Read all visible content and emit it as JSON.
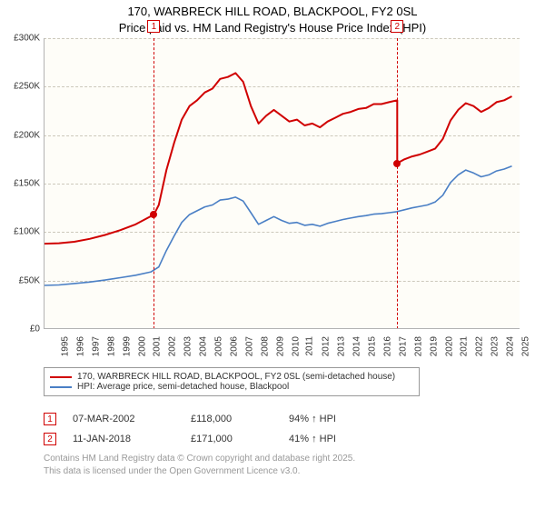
{
  "title_line1": "170, WARBRECK HILL ROAD, BLACKPOOL, FY2 0SL",
  "title_line2": "Price paid vs. HM Land Registry's House Price Index (HPI)",
  "chart": {
    "type": "line",
    "background_color": "#fefdf8",
    "grid_color": "#ccc8bb",
    "axis_color": "#b3b3b3",
    "x_start_year": 1995,
    "x_end_year": 2026,
    "xticks": [
      1995,
      1996,
      1997,
      1998,
      1999,
      2000,
      2001,
      2002,
      2003,
      2004,
      2005,
      2006,
      2007,
      2008,
      2009,
      2010,
      2011,
      2012,
      2013,
      2014,
      2015,
      2016,
      2017,
      2018,
      2019,
      2020,
      2021,
      2022,
      2023,
      2024,
      2025
    ],
    "ylim": [
      0,
      300000
    ],
    "yticks": [
      {
        "v": 0,
        "label": "£0"
      },
      {
        "v": 50000,
        "label": "£50K"
      },
      {
        "v": 100000,
        "label": "£100K"
      },
      {
        "v": 150000,
        "label": "£150K"
      },
      {
        "v": 200000,
        "label": "£200K"
      },
      {
        "v": 250000,
        "label": "£250K"
      },
      {
        "v": 300000,
        "label": "£300K"
      }
    ],
    "series": [
      {
        "id": "price_paid",
        "label": "170, WARBRECK HILL ROAD, BLACKPOOL, FY2 0SL (semi-detached house)",
        "color": "#d00000",
        "width": 2,
        "data": [
          [
            1995,
            88000
          ],
          [
            1996,
            88500
          ],
          [
            1997,
            90000
          ],
          [
            1998,
            93000
          ],
          [
            1999,
            97000
          ],
          [
            2000,
            102000
          ],
          [
            2001,
            108000
          ],
          [
            2002.18,
            118000
          ],
          [
            2002.5,
            128000
          ],
          [
            2003,
            164000
          ],
          [
            2003.5,
            192000
          ],
          [
            2004,
            216000
          ],
          [
            2004.5,
            230000
          ],
          [
            2005,
            236000
          ],
          [
            2005.5,
            244000
          ],
          [
            2006,
            248000
          ],
          [
            2006.5,
            258000
          ],
          [
            2007,
            260000
          ],
          [
            2007.5,
            264000
          ],
          [
            2008,
            255000
          ],
          [
            2008.5,
            230000
          ],
          [
            2009,
            212000
          ],
          [
            2009.5,
            220000
          ],
          [
            2010,
            226000
          ],
          [
            2010.5,
            220000
          ],
          [
            2011,
            214000
          ],
          [
            2011.5,
            216000
          ],
          [
            2012,
            210000
          ],
          [
            2012.5,
            212000
          ],
          [
            2013,
            208000
          ],
          [
            2013.5,
            214000
          ],
          [
            2014,
            218000
          ],
          [
            2014.5,
            222000
          ],
          [
            2015,
            224000
          ],
          [
            2015.5,
            227000
          ],
          [
            2016,
            228000
          ],
          [
            2016.5,
            232000
          ],
          [
            2017,
            232000
          ],
          [
            2017.5,
            234000
          ],
          [
            2018.03,
            236000
          ],
          [
            2018.031,
            171000
          ],
          [
            2018.5,
            175000
          ],
          [
            2019,
            178000
          ],
          [
            2019.5,
            180000
          ],
          [
            2020,
            183000
          ],
          [
            2020.5,
            186000
          ],
          [
            2021,
            196000
          ],
          [
            2021.5,
            215000
          ],
          [
            2022,
            226000
          ],
          [
            2022.5,
            233000
          ],
          [
            2023,
            230000
          ],
          [
            2023.5,
            224000
          ],
          [
            2024,
            228000
          ],
          [
            2024.5,
            234000
          ],
          [
            2025,
            236000
          ],
          [
            2025.5,
            240000
          ]
        ]
      },
      {
        "id": "hpi",
        "label": "HPI: Average price, semi-detached house, Blackpool",
        "color": "#4a7fc5",
        "width": 1.6,
        "data": [
          [
            1995,
            45000
          ],
          [
            1996,
            45500
          ],
          [
            1997,
            47000
          ],
          [
            1998,
            48500
          ],
          [
            1999,
            50500
          ],
          [
            2000,
            53000
          ],
          [
            2001,
            55500
          ],
          [
            2002,
            59000
          ],
          [
            2002.5,
            64000
          ],
          [
            2003,
            81000
          ],
          [
            2003.5,
            96000
          ],
          [
            2004,
            110000
          ],
          [
            2004.5,
            118000
          ],
          [
            2005,
            122000
          ],
          [
            2005.5,
            126000
          ],
          [
            2006,
            128000
          ],
          [
            2006.5,
            133000
          ],
          [
            2007,
            134000
          ],
          [
            2007.5,
            136000
          ],
          [
            2008,
            132000
          ],
          [
            2008.5,
            120000
          ],
          [
            2009,
            108000
          ],
          [
            2009.5,
            112000
          ],
          [
            2010,
            116000
          ],
          [
            2010.5,
            112000
          ],
          [
            2011,
            109000
          ],
          [
            2011.5,
            110000
          ],
          [
            2012,
            107000
          ],
          [
            2012.5,
            108000
          ],
          [
            2013,
            106000
          ],
          [
            2013.5,
            109000
          ],
          [
            2014,
            111000
          ],
          [
            2014.5,
            113000
          ],
          [
            2015,
            114500
          ],
          [
            2015.5,
            116000
          ],
          [
            2016,
            117000
          ],
          [
            2016.5,
            118500
          ],
          [
            2017,
            119000
          ],
          [
            2017.5,
            120000
          ],
          [
            2018,
            121000
          ],
          [
            2018.5,
            123000
          ],
          [
            2019,
            125000
          ],
          [
            2019.5,
            126500
          ],
          [
            2020,
            128000
          ],
          [
            2020.5,
            131000
          ],
          [
            2021,
            138000
          ],
          [
            2021.5,
            151000
          ],
          [
            2022,
            159000
          ],
          [
            2022.5,
            164000
          ],
          [
            2023,
            161000
          ],
          [
            2023.5,
            157000
          ],
          [
            2024,
            159000
          ],
          [
            2024.5,
            163000
          ],
          [
            2025,
            165000
          ],
          [
            2025.5,
            168000
          ]
        ]
      }
    ],
    "markers": [
      {
        "n": "1",
        "x": 2002.18,
        "y": 118000,
        "color": "#d00000"
      },
      {
        "n": "2",
        "x": 2018.03,
        "y": 171000,
        "color": "#d00000"
      }
    ]
  },
  "legend": {
    "items": [
      {
        "series": "price_paid"
      },
      {
        "series": "hpi"
      }
    ]
  },
  "transactions": [
    {
      "n": "1",
      "date": "07-MAR-2002",
      "price": "£118,000",
      "pct": "94% ↑ HPI"
    },
    {
      "n": "2",
      "date": "11-JAN-2018",
      "price": "£171,000",
      "pct": "41% ↑ HPI"
    }
  ],
  "footer_line1": "Contains HM Land Registry data © Crown copyright and database right 2025.",
  "footer_line2": "This data is licensed under the Open Government Licence v3.0."
}
